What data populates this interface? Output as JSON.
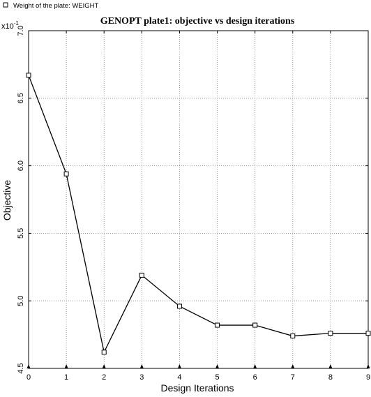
{
  "chart_data": {
    "type": "line",
    "title": "GENOPT plate1: objective vs design iterations",
    "xlabel": "Design Iterations",
    "ylabel": "Objective",
    "y_multiplier": "x10",
    "y_multiplier_exp": "-1",
    "x": [
      0,
      1,
      2,
      3,
      4,
      5,
      6,
      7,
      8,
      9
    ],
    "series": [
      {
        "name": "Weight of the plate: WEIGHT",
        "marker": "square",
        "values": [
          6.67,
          5.94,
          4.62,
          5.19,
          4.96,
          4.82,
          4.82,
          4.74,
          4.76,
          4.76
        ]
      }
    ],
    "xlim": [
      0,
      9
    ],
    "ylim": [
      4.5,
      7.0
    ],
    "xticks": [
      "0",
      "1",
      "2",
      "3",
      "4",
      "5",
      "6",
      "7",
      "8",
      "9"
    ],
    "yticks": [
      "4.5",
      "5.0",
      "5.5",
      "6.0",
      "6.5",
      "7.0"
    ],
    "grid": true,
    "legend_position": "top-left"
  },
  "colors": {
    "line": "#000000",
    "grid": "#7f7f7f",
    "background": "#ffffff"
  }
}
